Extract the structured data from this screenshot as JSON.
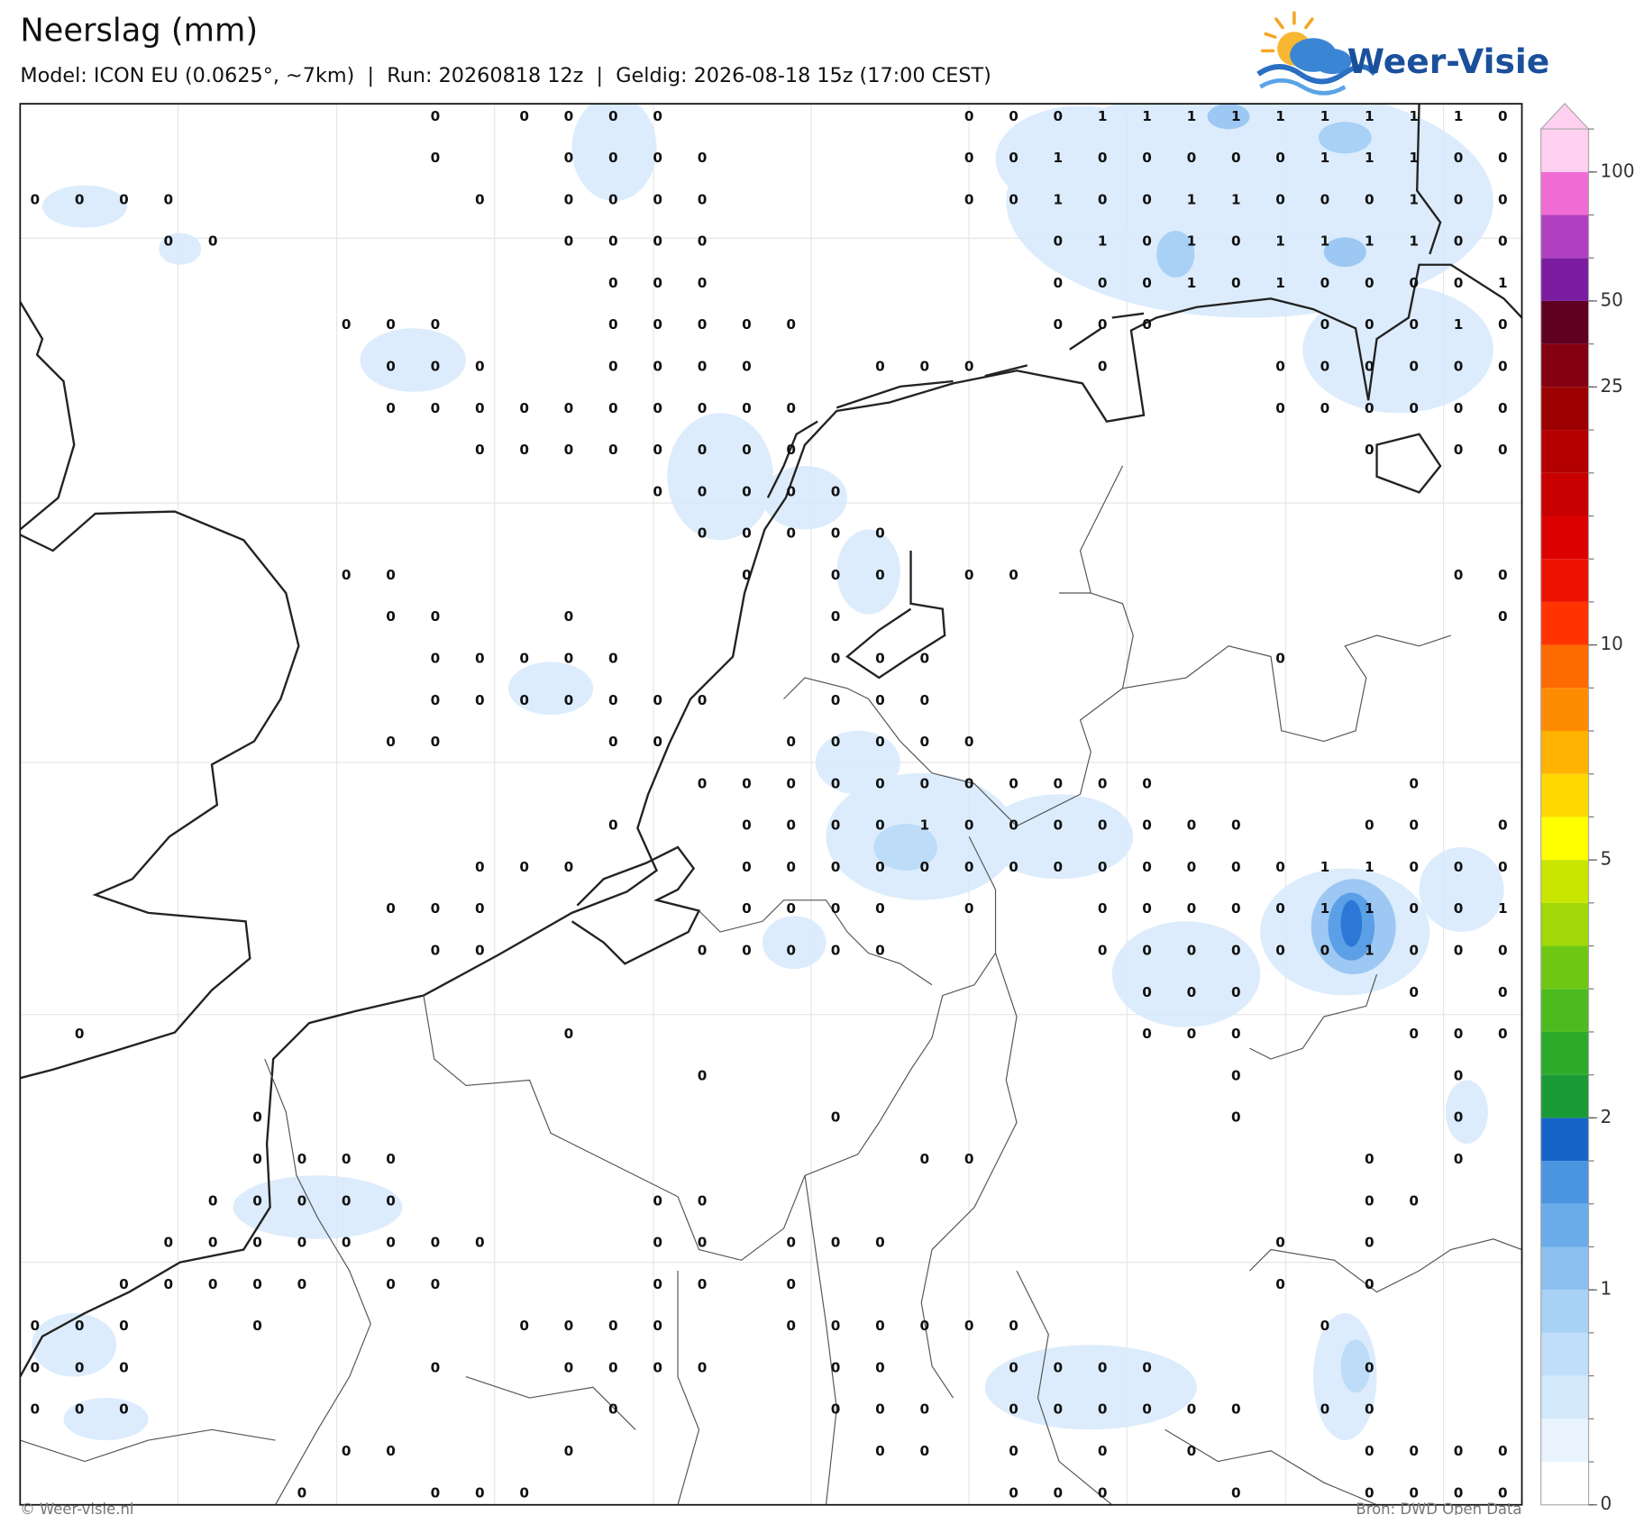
{
  "header": {
    "title": "Neerslag (mm)",
    "subtitle": "Model: ICON EU (0.0625°, ~7km)  |  Run: 20260818 12z  |  Geldig: 2026-08-18 15z (17:00 CEST)"
  },
  "logo": {
    "text": "Weer-Visie"
  },
  "map": {
    "values": [
      [
        null,
        null,
        null,
        null,
        null,
        null,
        null,
        null,
        null,
        0,
        null,
        0,
        0,
        0,
        0,
        null,
        null,
        null,
        null,
        null,
        null,
        0,
        0,
        0,
        1,
        1,
        1,
        1,
        1,
        1,
        1,
        1,
        1,
        0
      ],
      [
        null,
        null,
        null,
        null,
        null,
        null,
        null,
        null,
        null,
        0,
        null,
        null,
        0,
        0,
        0,
        0,
        null,
        null,
        null,
        null,
        null,
        0,
        0,
        1,
        0,
        0,
        0,
        0,
        0,
        1,
        1,
        1,
        0,
        0
      ],
      [
        0,
        0,
        0,
        0,
        null,
        null,
        null,
        null,
        null,
        null,
        0,
        null,
        0,
        0,
        0,
        0,
        null,
        null,
        null,
        null,
        null,
        0,
        0,
        1,
        0,
        0,
        1,
        1,
        0,
        0,
        0,
        1,
        0,
        0
      ],
      [
        null,
        null,
        null,
        0,
        0,
        null,
        null,
        null,
        null,
        null,
        null,
        null,
        0,
        0,
        0,
        0,
        null,
        null,
        null,
        null,
        null,
        null,
        null,
        0,
        1,
        0,
        1,
        0,
        1,
        1,
        1,
        1,
        0,
        0
      ],
      [
        null,
        null,
        null,
        null,
        null,
        null,
        null,
        null,
        null,
        null,
        null,
        null,
        null,
        0,
        0,
        0,
        null,
        null,
        null,
        null,
        null,
        null,
        null,
        0,
        0,
        0,
        1,
        0,
        1,
        0,
        0,
        0,
        0,
        1
      ],
      [
        null,
        null,
        null,
        null,
        null,
        null,
        null,
        0,
        0,
        0,
        null,
        null,
        null,
        0,
        0,
        0,
        0,
        0,
        null,
        null,
        null,
        null,
        null,
        0,
        0,
        0,
        null,
        null,
        null,
        0,
        0,
        0,
        1,
        0
      ],
      [
        null,
        null,
        null,
        null,
        null,
        null,
        null,
        null,
        0,
        0,
        0,
        null,
        null,
        0,
        0,
        0,
        0,
        null,
        null,
        0,
        0,
        0,
        null,
        null,
        0,
        null,
        null,
        null,
        0,
        0,
        0,
        0,
        0,
        0
      ],
      [
        null,
        null,
        null,
        null,
        null,
        null,
        null,
        null,
        0,
        0,
        0,
        0,
        0,
        0,
        0,
        0,
        0,
        0,
        null,
        null,
        null,
        null,
        null,
        null,
        null,
        null,
        null,
        null,
        0,
        0,
        0,
        0,
        0,
        0
      ],
      [
        null,
        null,
        null,
        null,
        null,
        null,
        null,
        null,
        null,
        null,
        0,
        0,
        0,
        0,
        0,
        0,
        0,
        0,
        null,
        null,
        null,
        null,
        null,
        null,
        null,
        null,
        null,
        null,
        null,
        null,
        0,
        null,
        0,
        0
      ],
      [
        null,
        null,
        null,
        null,
        null,
        null,
        null,
        null,
        null,
        null,
        null,
        null,
        null,
        null,
        0,
        0,
        0,
        0,
        0,
        null,
        null,
        null,
        null,
        null,
        null,
        null,
        null,
        null,
        null,
        null,
        null,
        null,
        null,
        null
      ],
      [
        null,
        null,
        null,
        null,
        null,
        null,
        null,
        null,
        null,
        null,
        null,
        null,
        null,
        null,
        null,
        0,
        0,
        0,
        0,
        0,
        null,
        null,
        null,
        null,
        null,
        null,
        null,
        null,
        null,
        null,
        null,
        null,
        null,
        null
      ],
      [
        null,
        null,
        null,
        null,
        null,
        null,
        null,
        0,
        0,
        null,
        null,
        null,
        null,
        null,
        null,
        null,
        0,
        null,
        0,
        0,
        null,
        0,
        0,
        null,
        null,
        null,
        null,
        null,
        null,
        null,
        null,
        null,
        0,
        0
      ],
      [
        null,
        null,
        null,
        null,
        null,
        null,
        null,
        null,
        0,
        0,
        null,
        null,
        0,
        null,
        null,
        null,
        null,
        null,
        0,
        null,
        null,
        null,
        null,
        null,
        null,
        null,
        null,
        null,
        null,
        null,
        null,
        null,
        null,
        0
      ],
      [
        null,
        null,
        null,
        null,
        null,
        null,
        null,
        null,
        null,
        0,
        0,
        0,
        0,
        0,
        null,
        null,
        null,
        null,
        0,
        0,
        0,
        null,
        null,
        null,
        null,
        null,
        null,
        null,
        0,
        null,
        null,
        null,
        null,
        null
      ],
      [
        null,
        null,
        null,
        null,
        null,
        null,
        null,
        null,
        null,
        0,
        0,
        0,
        0,
        0,
        0,
        0,
        null,
        null,
        0,
        0,
        0,
        null,
        null,
        null,
        null,
        null,
        null,
        null,
        null,
        null,
        null,
        null,
        null,
        null
      ],
      [
        null,
        null,
        null,
        null,
        null,
        null,
        null,
        null,
        0,
        0,
        null,
        null,
        null,
        0,
        0,
        null,
        null,
        0,
        0,
        0,
        0,
        0,
        null,
        null,
        null,
        null,
        null,
        null,
        null,
        null,
        null,
        null,
        null,
        null
      ],
      [
        null,
        null,
        null,
        null,
        null,
        null,
        null,
        null,
        null,
        null,
        null,
        null,
        null,
        null,
        null,
        0,
        0,
        0,
        0,
        0,
        0,
        0,
        0,
        0,
        0,
        0,
        null,
        null,
        null,
        null,
        null,
        0,
        null,
        null
      ],
      [
        null,
        null,
        null,
        null,
        null,
        null,
        null,
        null,
        null,
        null,
        null,
        null,
        null,
        0,
        null,
        null,
        0,
        0,
        0,
        0,
        1,
        0,
        0,
        0,
        0,
        0,
        0,
        0,
        null,
        null,
        0,
        0,
        null,
        0
      ],
      [
        null,
        null,
        null,
        null,
        null,
        null,
        null,
        null,
        null,
        null,
        0,
        0,
        0,
        null,
        null,
        null,
        0,
        0,
        0,
        0,
        0,
        0,
        0,
        0,
        0,
        0,
        0,
        0,
        0,
        1,
        1,
        0,
        0,
        0
      ],
      [
        null,
        null,
        null,
        null,
        null,
        null,
        null,
        null,
        0,
        0,
        0,
        null,
        null,
        null,
        null,
        null,
        0,
        0,
        0,
        0,
        null,
        0,
        null,
        null,
        0,
        0,
        0,
        0,
        0,
        1,
        1,
        0,
        0,
        1
      ],
      [
        null,
        null,
        null,
        null,
        null,
        null,
        null,
        null,
        null,
        0,
        0,
        null,
        null,
        null,
        null,
        0,
        0,
        0,
        0,
        0,
        null,
        null,
        null,
        null,
        0,
        0,
        0,
        0,
        0,
        0,
        1,
        0,
        0,
        0
      ],
      [
        null,
        null,
        null,
        null,
        null,
        null,
        null,
        null,
        null,
        null,
        null,
        null,
        null,
        null,
        null,
        null,
        null,
        null,
        null,
        null,
        null,
        null,
        null,
        null,
        null,
        0,
        0,
        0,
        null,
        null,
        null,
        0,
        null,
        0
      ],
      [
        null,
        0,
        null,
        null,
        null,
        null,
        null,
        null,
        null,
        null,
        null,
        null,
        0,
        null,
        null,
        null,
        null,
        null,
        null,
        null,
        null,
        null,
        null,
        null,
        null,
        0,
        0,
        0,
        null,
        null,
        null,
        0,
        0,
        0
      ],
      [
        null,
        null,
        null,
        null,
        null,
        null,
        null,
        null,
        null,
        null,
        null,
        null,
        null,
        null,
        null,
        0,
        null,
        null,
        null,
        null,
        null,
        null,
        null,
        null,
        null,
        null,
        null,
        0,
        null,
        null,
        null,
        null,
        0,
        null
      ],
      [
        null,
        null,
        null,
        null,
        null,
        0,
        null,
        null,
        null,
        null,
        null,
        null,
        null,
        null,
        null,
        null,
        null,
        null,
        0,
        null,
        null,
        null,
        null,
        null,
        null,
        null,
        null,
        0,
        null,
        null,
        null,
        null,
        0,
        null
      ],
      [
        null,
        null,
        null,
        null,
        null,
        0,
        0,
        0,
        0,
        null,
        null,
        null,
        null,
        null,
        null,
        null,
        null,
        null,
        null,
        null,
        0,
        0,
        null,
        null,
        null,
        null,
        null,
        null,
        null,
        null,
        0,
        null,
        0,
        null
      ],
      [
        null,
        null,
        null,
        null,
        0,
        0,
        0,
        0,
        0,
        null,
        null,
        null,
        null,
        null,
        0,
        0,
        null,
        null,
        null,
        null,
        null,
        null,
        null,
        null,
        null,
        null,
        null,
        null,
        null,
        null,
        0,
        0,
        null,
        null
      ],
      [
        null,
        null,
        null,
        0,
        0,
        0,
        0,
        0,
        0,
        0,
        0,
        null,
        null,
        null,
        0,
        0,
        null,
        0,
        0,
        0,
        null,
        null,
        null,
        null,
        null,
        null,
        null,
        null,
        0,
        null,
        0,
        null,
        null,
        null
      ],
      [
        null,
        null,
        0,
        0,
        0,
        0,
        0,
        null,
        0,
        0,
        null,
        null,
        null,
        null,
        0,
        0,
        null,
        0,
        null,
        null,
        null,
        null,
        null,
        null,
        null,
        null,
        null,
        null,
        0,
        null,
        0,
        null,
        null,
        null
      ],
      [
        0,
        0,
        0,
        null,
        null,
        0,
        null,
        null,
        null,
        null,
        null,
        0,
        0,
        0,
        0,
        null,
        null,
        0,
        0,
        0,
        0,
        0,
        0,
        null,
        null,
        null,
        null,
        null,
        null,
        0,
        null,
        null,
        null,
        null
      ],
      [
        0,
        0,
        0,
        null,
        null,
        null,
        null,
        null,
        null,
        0,
        null,
        null,
        0,
        0,
        0,
        0,
        null,
        null,
        0,
        0,
        null,
        null,
        0,
        0,
        0,
        0,
        null,
        null,
        null,
        null,
        0,
        null,
        null,
        null
      ],
      [
        0,
        0,
        0,
        null,
        null,
        null,
        null,
        null,
        null,
        null,
        null,
        null,
        null,
        0,
        null,
        null,
        null,
        null,
        0,
        0,
        0,
        null,
        0,
        0,
        0,
        0,
        0,
        0,
        null,
        0,
        0,
        null,
        null,
        null
      ],
      [
        null,
        null,
        null,
        null,
        null,
        null,
        null,
        0,
        0,
        null,
        null,
        null,
        0,
        null,
        null,
        null,
        null,
        null,
        null,
        0,
        0,
        null,
        0,
        null,
        0,
        null,
        0,
        null,
        null,
        null,
        0,
        0,
        0,
        0
      ],
      [
        null,
        null,
        null,
        null,
        null,
        null,
        0,
        null,
        null,
        0,
        0,
        0,
        null,
        null,
        null,
        null,
        null,
        null,
        null,
        null,
        null,
        null,
        0,
        0,
        0,
        null,
        null,
        0,
        null,
        null,
        0,
        0,
        0,
        0
      ]
    ]
  },
  "colorbar": {
    "boundaries": [
      0,
      0.1,
      0.2,
      0.4,
      0.7,
      1,
      1.2,
      1.4,
      1.7,
      2,
      2.5,
      3,
      3.5,
      4,
      4.5,
      5,
      6,
      7,
      8,
      9,
      10,
      12,
      14,
      16,
      18,
      20,
      25,
      35,
      50,
      60,
      75,
      100,
      150
    ],
    "colors": [
      "#ffffff",
      "#e8f3fd",
      "#d3e8fb",
      "#c0def9",
      "#a8d1f6",
      "#8bc0f1",
      "#6aabe9",
      "#4b95e0",
      "#1565c8",
      "#1a9a37",
      "#2eaa2a",
      "#4dbb1e",
      "#6ec813",
      "#a0d808",
      "#c8e600",
      "#ffff00",
      "#ffd800",
      "#ffb300",
      "#ff8c00",
      "#ff6a00",
      "#ff3300",
      "#ee1100",
      "#dd0000",
      "#c80000",
      "#b40000",
      "#9c0000",
      "#850010",
      "#600020",
      "#7a1ca0",
      "#b040c0",
      "#f06cd4",
      "#ffd0f0"
    ],
    "extend_color": "#ffd0f0",
    "ticks": [
      0,
      1,
      2,
      5,
      10,
      25,
      50,
      100
    ]
  },
  "footer": {
    "copyright": "© Weer-visie.nl",
    "source": "Bron: DWD Open Data"
  }
}
